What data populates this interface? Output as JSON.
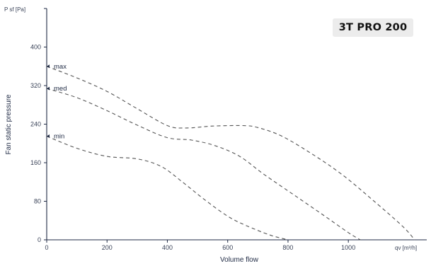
{
  "chart_data": {
    "type": "line",
    "title": "3T PRO 200",
    "xlabel": "Volume flow",
    "ylabel": "Fan static pressure",
    "x_unit_label": "qv [m³/h]",
    "y_unit_label": "P sf [Pa]",
    "xlim": [
      0,
      1260
    ],
    "ylim": [
      0,
      480
    ],
    "x_ticks": [
      0,
      200,
      400,
      600,
      800,
      1000
    ],
    "y_ticks": [
      0,
      80,
      160,
      240,
      320,
      400
    ],
    "grid": false,
    "legend": "inline labels at curve start",
    "series": [
      {
        "name": "max",
        "x": [
          0,
          100,
          200,
          300,
          400,
          460,
          550,
          650,
          700,
          780,
          880,
          980,
          1080,
          1180,
          1220
        ],
        "y": [
          360,
          336,
          308,
          272,
          237,
          232,
          236,
          237,
          233,
          215,
          178,
          135,
          83,
          28,
          0
        ]
      },
      {
        "name": "med",
        "x": [
          0,
          100,
          200,
          300,
          400,
          480,
          560,
          640,
          720,
          820,
          920,
          1000,
          1040
        ],
        "y": [
          314,
          295,
          268,
          238,
          212,
          207,
          195,
          173,
          136,
          93,
          50,
          15,
          0
        ]
      },
      {
        "name": "min",
        "x": [
          0,
          100,
          200,
          300,
          380,
          450,
          520,
          600,
          660,
          740,
          800
        ],
        "y": [
          215,
          190,
          173,
          168,
          152,
          120,
          85,
          49,
          30,
          10,
          0
        ]
      }
    ]
  }
}
